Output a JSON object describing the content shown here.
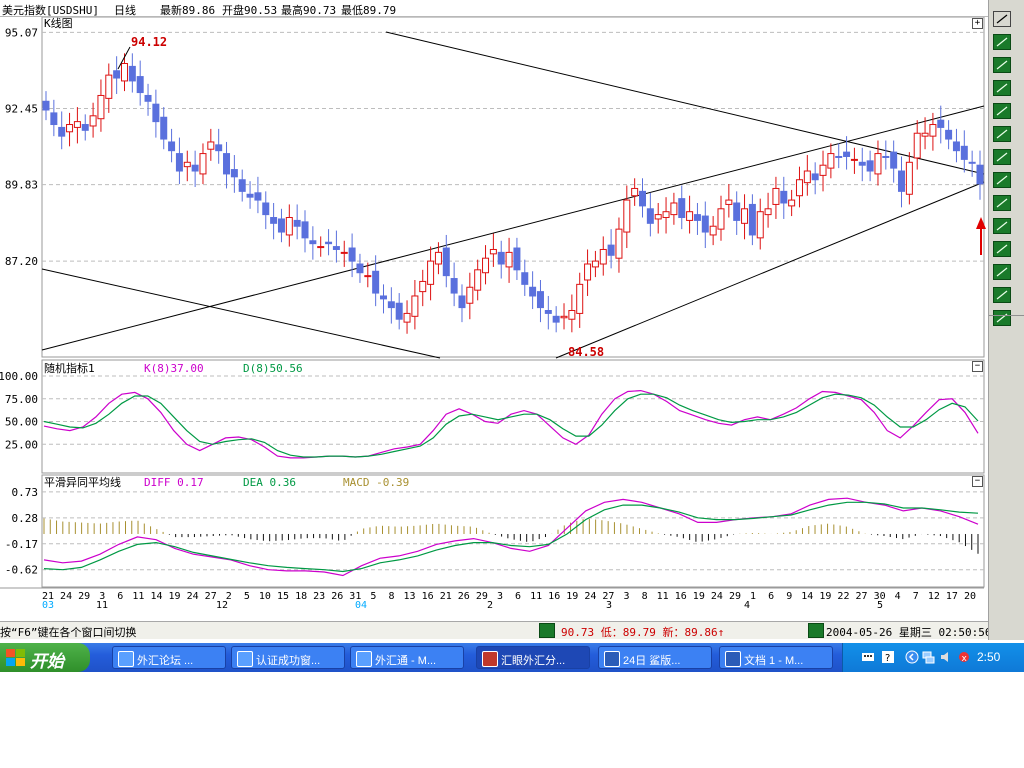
{
  "titlebar": {
    "symbol": "美元指数[USDSHU]",
    "period": "日线",
    "latest": "最新89.86",
    "open": "开盘90.53",
    "high": "最高90.73",
    "low": "最低89.79"
  },
  "main_panel": {
    "label": "K线图",
    "y_ticks": [
      "95.07",
      "92.45",
      "89.83",
      "87.20"
    ],
    "annotation_high": "94.12",
    "annotation_low": "84.58"
  },
  "kdj_panel": {
    "label": "随机指标1",
    "k_label": "K(8)37.00",
    "d_label": "D(8)50.56",
    "y_ticks": [
      "100.00",
      "75.00",
      "50.00",
      "25.00"
    ]
  },
  "macd_panel": {
    "label": "平滑异同平均线",
    "diff_label": "DIFF 0.17",
    "dea_label": "DEA 0.36",
    "macd_label": "MACD -0.39",
    "y_ticks": [
      "0.73",
      "0.28",
      "-0.17",
      "-0.62"
    ]
  },
  "x_axis": {
    "day_ticks": [
      "21",
      "24",
      "29",
      "3",
      "6",
      "11",
      "14",
      "19",
      "24",
      "27",
      "2",
      "5",
      "10",
      "15",
      "18",
      "23",
      "26",
      "31",
      "5",
      "8",
      "13",
      "16",
      "21",
      "26",
      "29",
      "3",
      "6",
      "11",
      "16",
      "19",
      "24",
      "27",
      "3",
      "8",
      "11",
      "16",
      "19",
      "24",
      "29",
      "1",
      "6",
      "9",
      "14",
      "19",
      "22",
      "27",
      "30",
      "4",
      "7",
      "12",
      "17",
      "20"
    ],
    "month_ticks": [
      {
        "label": "03",
        "color": "#00aaff"
      },
      {
        "label": "11",
        "color": "#000000"
      },
      {
        "label": "12",
        "color": "#000000"
      },
      {
        "label": "04",
        "color": "#00aaff"
      },
      {
        "label": "2",
        "color": "#000000"
      },
      {
        "label": "3",
        "color": "#000000"
      },
      {
        "label": "4",
        "color": "#000000"
      },
      {
        "label": "5",
        "color": "#000000"
      }
    ]
  },
  "statusbar": {
    "hint": "按“F6”键在各个窗口间切换",
    "quote": "90.73 低：89.79 新：89.86↑",
    "datetime": "2004-05-26 星期三 02:50:56"
  },
  "taskbar": {
    "start_label": "开始",
    "tasks": [
      {
        "label": "外汇论坛 ...",
        "icon": "ie-icon"
      },
      {
        "label": "认证成功窗...",
        "icon": "ie-icon"
      },
      {
        "label": "外汇通 - M...",
        "icon": "ie-icon"
      },
      {
        "label": "汇眼外汇分...",
        "icon": "chart-app-icon"
      },
      {
        "label": "24日 鲨版...",
        "icon": "word-icon"
      },
      {
        "label": "文档 1 - M...",
        "icon": "word-icon"
      }
    ],
    "clock": "2:50"
  },
  "colors": {
    "up": "#dd1111",
    "down": "#5a70dd",
    "k_line": "#cc00cc",
    "d_line": "#009944",
    "macd_pos": "#a89030",
    "macd_neg": "#111111",
    "annotation": "#cc0000",
    "grid": "#bdbdbd"
  },
  "chart_data": {
    "type": "candlestick",
    "y_range_main": [
      83.9,
      95.6
    ],
    "y_range_kdj": [
      0,
      100
    ],
    "y_range_macd": [
      -0.85,
      0.78
    ],
    "closes": [
      92.4,
      91.9,
      91.5,
      91.9,
      92.0,
      91.7,
      92.2,
      92.9,
      93.6,
      93.5,
      94.0,
      93.4,
      93.0,
      92.7,
      92.0,
      91.4,
      91.0,
      90.3,
      90.6,
      90.3,
      90.9,
      91.3,
      91.0,
      90.2,
      90.1,
      89.6,
      89.4,
      89.3,
      88.8,
      88.5,
      88.2,
      88.7,
      88.4,
      88.0,
      87.8,
      87.7,
      87.8,
      87.6,
      87.5,
      87.2,
      86.8,
      86.7,
      86.1,
      85.9,
      85.6,
      85.2,
      85.4,
      86.0,
      86.5,
      87.2,
      87.5,
      86.7,
      86.1,
      85.6,
      86.3,
      86.9,
      87.3,
      87.6,
      87.1,
      87.5,
      86.9,
      86.4,
      86.0,
      85.6,
      85.4,
      85.1,
      85.3,
      85.5,
      86.4,
      87.1,
      87.2,
      87.6,
      87.4,
      88.3,
      89.3,
      89.7,
      89.1,
      88.5,
      88.8,
      88.9,
      89.2,
      88.7,
      88.9,
      88.6,
      88.2,
      88.4,
      89.0,
      89.3,
      88.6,
      89.0,
      88.1,
      88.9,
      89.0,
      89.7,
      89.2,
      89.3,
      90.0,
      90.3,
      90.0,
      90.5,
      90.9,
      90.8,
      90.8,
      90.7,
      90.5,
      90.3,
      90.9,
      90.8,
      90.4,
      89.6,
      90.6,
      91.6,
      91.6,
      91.9,
      91.8,
      91.4,
      91.0,
      90.7,
      90.6,
      89.86
    ],
    "kdj": {
      "K": [
        45,
        42,
        40,
        44,
        55,
        70,
        80,
        82,
        75,
        60,
        40,
        25,
        18,
        25,
        32,
        33,
        30,
        22,
        12,
        10,
        10,
        11,
        12,
        12,
        11,
        12,
        16,
        20,
        22,
        25,
        40,
        58,
        64,
        58,
        50,
        48,
        58,
        62,
        58,
        45,
        32,
        25,
        35,
        58,
        75,
        83,
        84,
        80,
        72,
        62,
        57,
        52,
        48,
        46,
        52,
        55,
        52,
        58,
        65,
        75,
        83,
        82,
        78,
        74,
        60,
        40,
        32,
        45,
        60,
        74,
        75,
        60,
        37
      ],
      "D": [
        50,
        47,
        44,
        43,
        48,
        58,
        70,
        78,
        78,
        70,
        55,
        40,
        28,
        25,
        28,
        30,
        31,
        27,
        18,
        13,
        11,
        11,
        12,
        12,
        11,
        12,
        14,
        17,
        20,
        23,
        32,
        47,
        56,
        58,
        55,
        52,
        55,
        58,
        58,
        52,
        42,
        34,
        34,
        46,
        62,
        75,
        80,
        80,
        76,
        68,
        62,
        57,
        52,
        49,
        50,
        52,
        52,
        55,
        60,
        68,
        76,
        80,
        79,
        76,
        68,
        55,
        44,
        44,
        52,
        63,
        70,
        66,
        50.56
      ]
    },
    "macd": {
      "DIFF": [
        -0.45,
        -0.5,
        -0.47,
        -0.35,
        -0.18,
        -0.05,
        -0.1,
        -0.25,
        -0.35,
        -0.4,
        -0.45,
        -0.55,
        -0.62,
        -0.64,
        -0.64,
        -0.66,
        -0.72,
        -0.55,
        -0.42,
        -0.38,
        -0.3,
        -0.18,
        -0.12,
        -0.08,
        -0.15,
        -0.25,
        -0.3,
        -0.2,
        0.1,
        0.4,
        0.55,
        0.6,
        0.55,
        0.45,
        0.35,
        0.2,
        0.2,
        0.25,
        0.28,
        0.3,
        0.35,
        0.5,
        0.6,
        0.62,
        0.55,
        0.5,
        0.4,
        0.45,
        0.4,
        0.3,
        0.17
      ],
      "DEA": [
        -0.6,
        -0.62,
        -0.58,
        -0.45,
        -0.3,
        -0.18,
        -0.15,
        -0.22,
        -0.32,
        -0.38,
        -0.44,
        -0.5,
        -0.55,
        -0.58,
        -0.6,
        -0.62,
        -0.65,
        -0.6,
        -0.5,
        -0.45,
        -0.38,
        -0.28,
        -0.2,
        -0.15,
        -0.15,
        -0.2,
        -0.22,
        -0.18,
        0.0,
        0.25,
        0.42,
        0.5,
        0.5,
        0.45,
        0.38,
        0.28,
        0.25,
        0.25,
        0.27,
        0.3,
        0.33,
        0.42,
        0.5,
        0.55,
        0.55,
        0.52,
        0.45,
        0.45,
        0.42,
        0.38,
        0.36
      ],
      "MACD_first": 0.35,
      "MACD_last": -0.39
    }
  }
}
